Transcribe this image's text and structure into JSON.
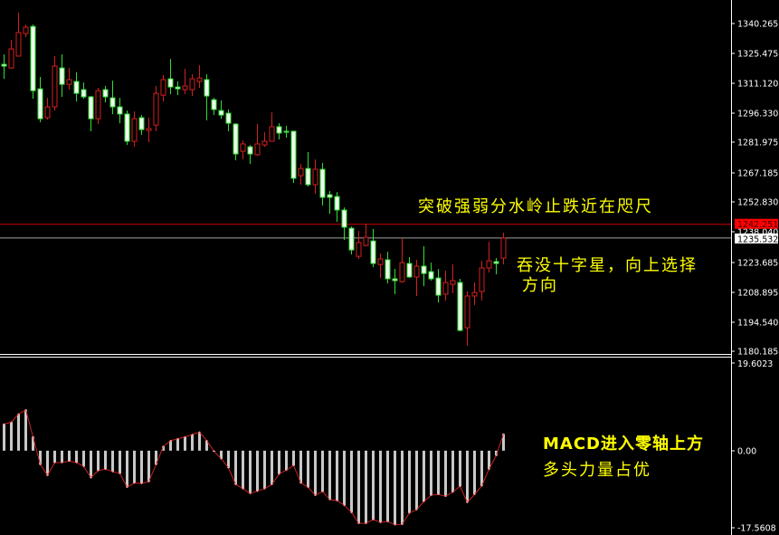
{
  "chart_data": [
    {
      "type": "candlestick",
      "panel": "price",
      "ylim": [
        1178.9,
        1351.8
      ],
      "y_ticks": [
        "1340.265",
        "1325.475",
        "1311.120",
        "1296.330",
        "1281.975",
        "1267.185",
        "1252.830",
        "1238.040",
        "1223.685",
        "1208.895",
        "1194.540",
        "1180.185"
      ],
      "up_color": "#d42020",
      "down_color": "#33dd33",
      "down_fill": "#eeffee",
      "ohlc": [
        [
          1320.4,
          1325.2,
          1313.3,
          1319.5
        ],
        [
          1318.6,
          1332.3,
          1318.2,
          1327.9
        ],
        [
          1324.4,
          1345.6,
          1324.4,
          1335.9
        ],
        [
          1335.4,
          1339.8,
          1333.6,
          1338.5
        ],
        [
          1338.9,
          1339.8,
          1303.6,
          1307.5
        ],
        [
          1308.4,
          1314.2,
          1292.1,
          1293.8
        ],
        [
          1294.3,
          1304.0,
          1293.4,
          1299.6
        ],
        [
          1299.6,
          1324.4,
          1297.8,
          1319.5
        ],
        [
          1318.6,
          1325.2,
          1304.5,
          1310.6
        ],
        [
          1310.6,
          1318.6,
          1308.0,
          1312.9
        ],
        [
          1312.0,
          1316.4,
          1302.2,
          1306.2
        ],
        [
          1308.0,
          1311.5,
          1303.6,
          1304.5
        ],
        [
          1304.5,
          1304.9,
          1287.7,
          1293.8
        ],
        [
          1293.8,
          1308.9,
          1291.2,
          1307.5
        ],
        [
          1308.0,
          1309.8,
          1301.8,
          1304.5
        ],
        [
          1304.0,
          1312.4,
          1296.1,
          1299.6
        ],
        [
          1299.6,
          1304.0,
          1291.6,
          1296.1
        ],
        [
          1296.1,
          1297.8,
          1281.0,
          1282.8
        ],
        [
          1282.8,
          1297.4,
          1280.1,
          1293.8
        ],
        [
          1294.3,
          1295.6,
          1285.9,
          1288.5
        ],
        [
          1288.1,
          1294.3,
          1282.3,
          1289.0
        ],
        [
          1290.7,
          1309.8,
          1287.7,
          1306.2
        ],
        [
          1305.3,
          1315.1,
          1302.2,
          1312.9
        ],
        [
          1313.3,
          1323.0,
          1305.8,
          1309.3
        ],
        [
          1309.3,
          1312.0,
          1305.3,
          1308.4
        ],
        [
          1308.0,
          1318.2,
          1305.8,
          1309.8
        ],
        [
          1308.0,
          1315.5,
          1304.9,
          1313.3
        ],
        [
          1312.0,
          1319.9,
          1308.9,
          1313.7
        ],
        [
          1312.9,
          1315.5,
          1293.0,
          1304.9
        ],
        [
          1303.1,
          1304.0,
          1295.6,
          1298.3
        ],
        [
          1297.8,
          1302.7,
          1293.8,
          1295.6
        ],
        [
          1296.5,
          1298.3,
          1287.7,
          1291.6
        ],
        [
          1291.2,
          1291.6,
          1273.5,
          1276.6
        ],
        [
          1277.9,
          1283.2,
          1273.9,
          1281.5
        ],
        [
          1280.1,
          1281.0,
          1271.7,
          1276.6
        ],
        [
          1276.2,
          1291.2,
          1275.7,
          1281.5
        ],
        [
          1281.0,
          1287.2,
          1280.1,
          1282.8
        ],
        [
          1282.8,
          1296.9,
          1282.8,
          1289.9
        ],
        [
          1289.9,
          1291.6,
          1283.7,
          1286.8
        ],
        [
          1287.7,
          1290.3,
          1284.6,
          1287.2
        ],
        [
          1287.7,
          1287.7,
          1262.4,
          1264.7
        ],
        [
          1266.0,
          1271.7,
          1261.6,
          1269.5
        ],
        [
          1269.5,
          1277.5,
          1260.7,
          1261.6
        ],
        [
          1261.6,
          1273.9,
          1257.1,
          1269.1
        ],
        [
          1269.1,
          1272.2,
          1251.4,
          1255.4
        ],
        [
          1256.7,
          1258.5,
          1247.4,
          1255.4
        ],
        [
          1255.8,
          1258.0,
          1243.4,
          1249.2
        ],
        [
          1249.2,
          1250.5,
          1234.6,
          1240.8
        ],
        [
          1240.3,
          1241.2,
          1227.5,
          1229.7
        ],
        [
          1226.6,
          1239.0,
          1225.3,
          1233.3
        ],
        [
          1231.9,
          1242.5,
          1231.5,
          1235.9
        ],
        [
          1234.1,
          1239.9,
          1221.3,
          1223.1
        ],
        [
          1222.6,
          1228.0,
          1216.0,
          1225.3
        ],
        [
          1224.9,
          1228.8,
          1213.4,
          1215.6
        ],
        [
          1215.6,
          1220.4,
          1208.1,
          1214.7
        ],
        [
          1214.2,
          1235.5,
          1213.8,
          1223.5
        ],
        [
          1223.1,
          1226.2,
          1216.0,
          1216.5
        ],
        [
          1216.5,
          1224.9,
          1207.2,
          1221.8
        ],
        [
          1221.8,
          1231.5,
          1212.0,
          1218.2
        ],
        [
          1219.1,
          1223.5,
          1214.7,
          1215.6
        ],
        [
          1216.0,
          1220.4,
          1204.1,
          1207.6
        ],
        [
          1208.1,
          1219.6,
          1205.0,
          1213.8
        ],
        [
          1212.9,
          1222.6,
          1208.5,
          1214.7
        ],
        [
          1213.8,
          1215.6,
          1189.9,
          1190.4
        ],
        [
          1191.7,
          1209.4,
          1182.9,
          1207.2
        ],
        [
          1207.2,
          1213.8,
          1202.8,
          1208.9
        ],
        [
          1209.4,
          1224.4,
          1205.0,
          1220.9
        ],
        [
          1220.9,
          1233.7,
          1218.7,
          1224.4
        ],
        [
          1224.0,
          1225.7,
          1217.8,
          1223.1
        ],
        [
          1225.7,
          1238.1,
          1222.6,
          1235.532
        ]
      ],
      "hlines": [
        {
          "price": 1242.251,
          "label": "1242.251",
          "color": "#cc0000"
        },
        {
          "price": 1235.532,
          "label": "1235.532",
          "color": "#a0a0a0"
        }
      ],
      "annotations": [
        {
          "text": "突破强弱分水岭止跌近在咫尺",
          "color": "#ffff00"
        },
        {
          "text": "吞没十字星，向上选择",
          "color": "#ffff00"
        },
        {
          "text": "方向",
          "color": "#ffff00"
        }
      ]
    },
    {
      "type": "bar",
      "panel": "MACD",
      "ylim": [
        -17.5608,
        19.6023
      ],
      "y_ticks": [
        "19.6023",
        "0.00",
        "-17.5608"
      ],
      "bar_color": "#c8c8c8",
      "line_color": "#cc2222",
      "values": [
        5.6,
        6.0,
        7.7,
        8.6,
        2.9,
        -2.9,
        -5.2,
        -2.5,
        -2.5,
        -2.2,
        -2.5,
        -3.3,
        -5.7,
        -4.2,
        -3.9,
        -4.4,
        -4.8,
        -7.7,
        -6.8,
        -6.9,
        -6.5,
        -2.9,
        0.9,
        2.1,
        2.5,
        2.9,
        3.4,
        3.9,
        2.1,
        -0.1,
        -1.7,
        -3.6,
        -7.1,
        -8.0,
        -9.0,
        -8.5,
        -8.0,
        -7.1,
        -4.9,
        -4.1,
        -3.1,
        -6.8,
        -7.7,
        -9.4,
        -8.6,
        -10.3,
        -10.5,
        -11.5,
        -13.0,
        -15.3,
        -15.3,
        -14.5,
        -15.1,
        -14.9,
        -15.6,
        -15.5,
        -13.1,
        -12.4,
        -10.7,
        -9.4,
        -9.2,
        -9.6,
        -8.7,
        -7.5,
        -10.9,
        -9.2,
        -7.4,
        -3.9,
        -1.0,
        3.5
      ],
      "annotations": [
        {
          "text": "MACD进入零轴上方",
          "color": "#ffff00"
        },
        {
          "text": "多头力量占优",
          "color": "#ffff00"
        }
      ]
    }
  ]
}
